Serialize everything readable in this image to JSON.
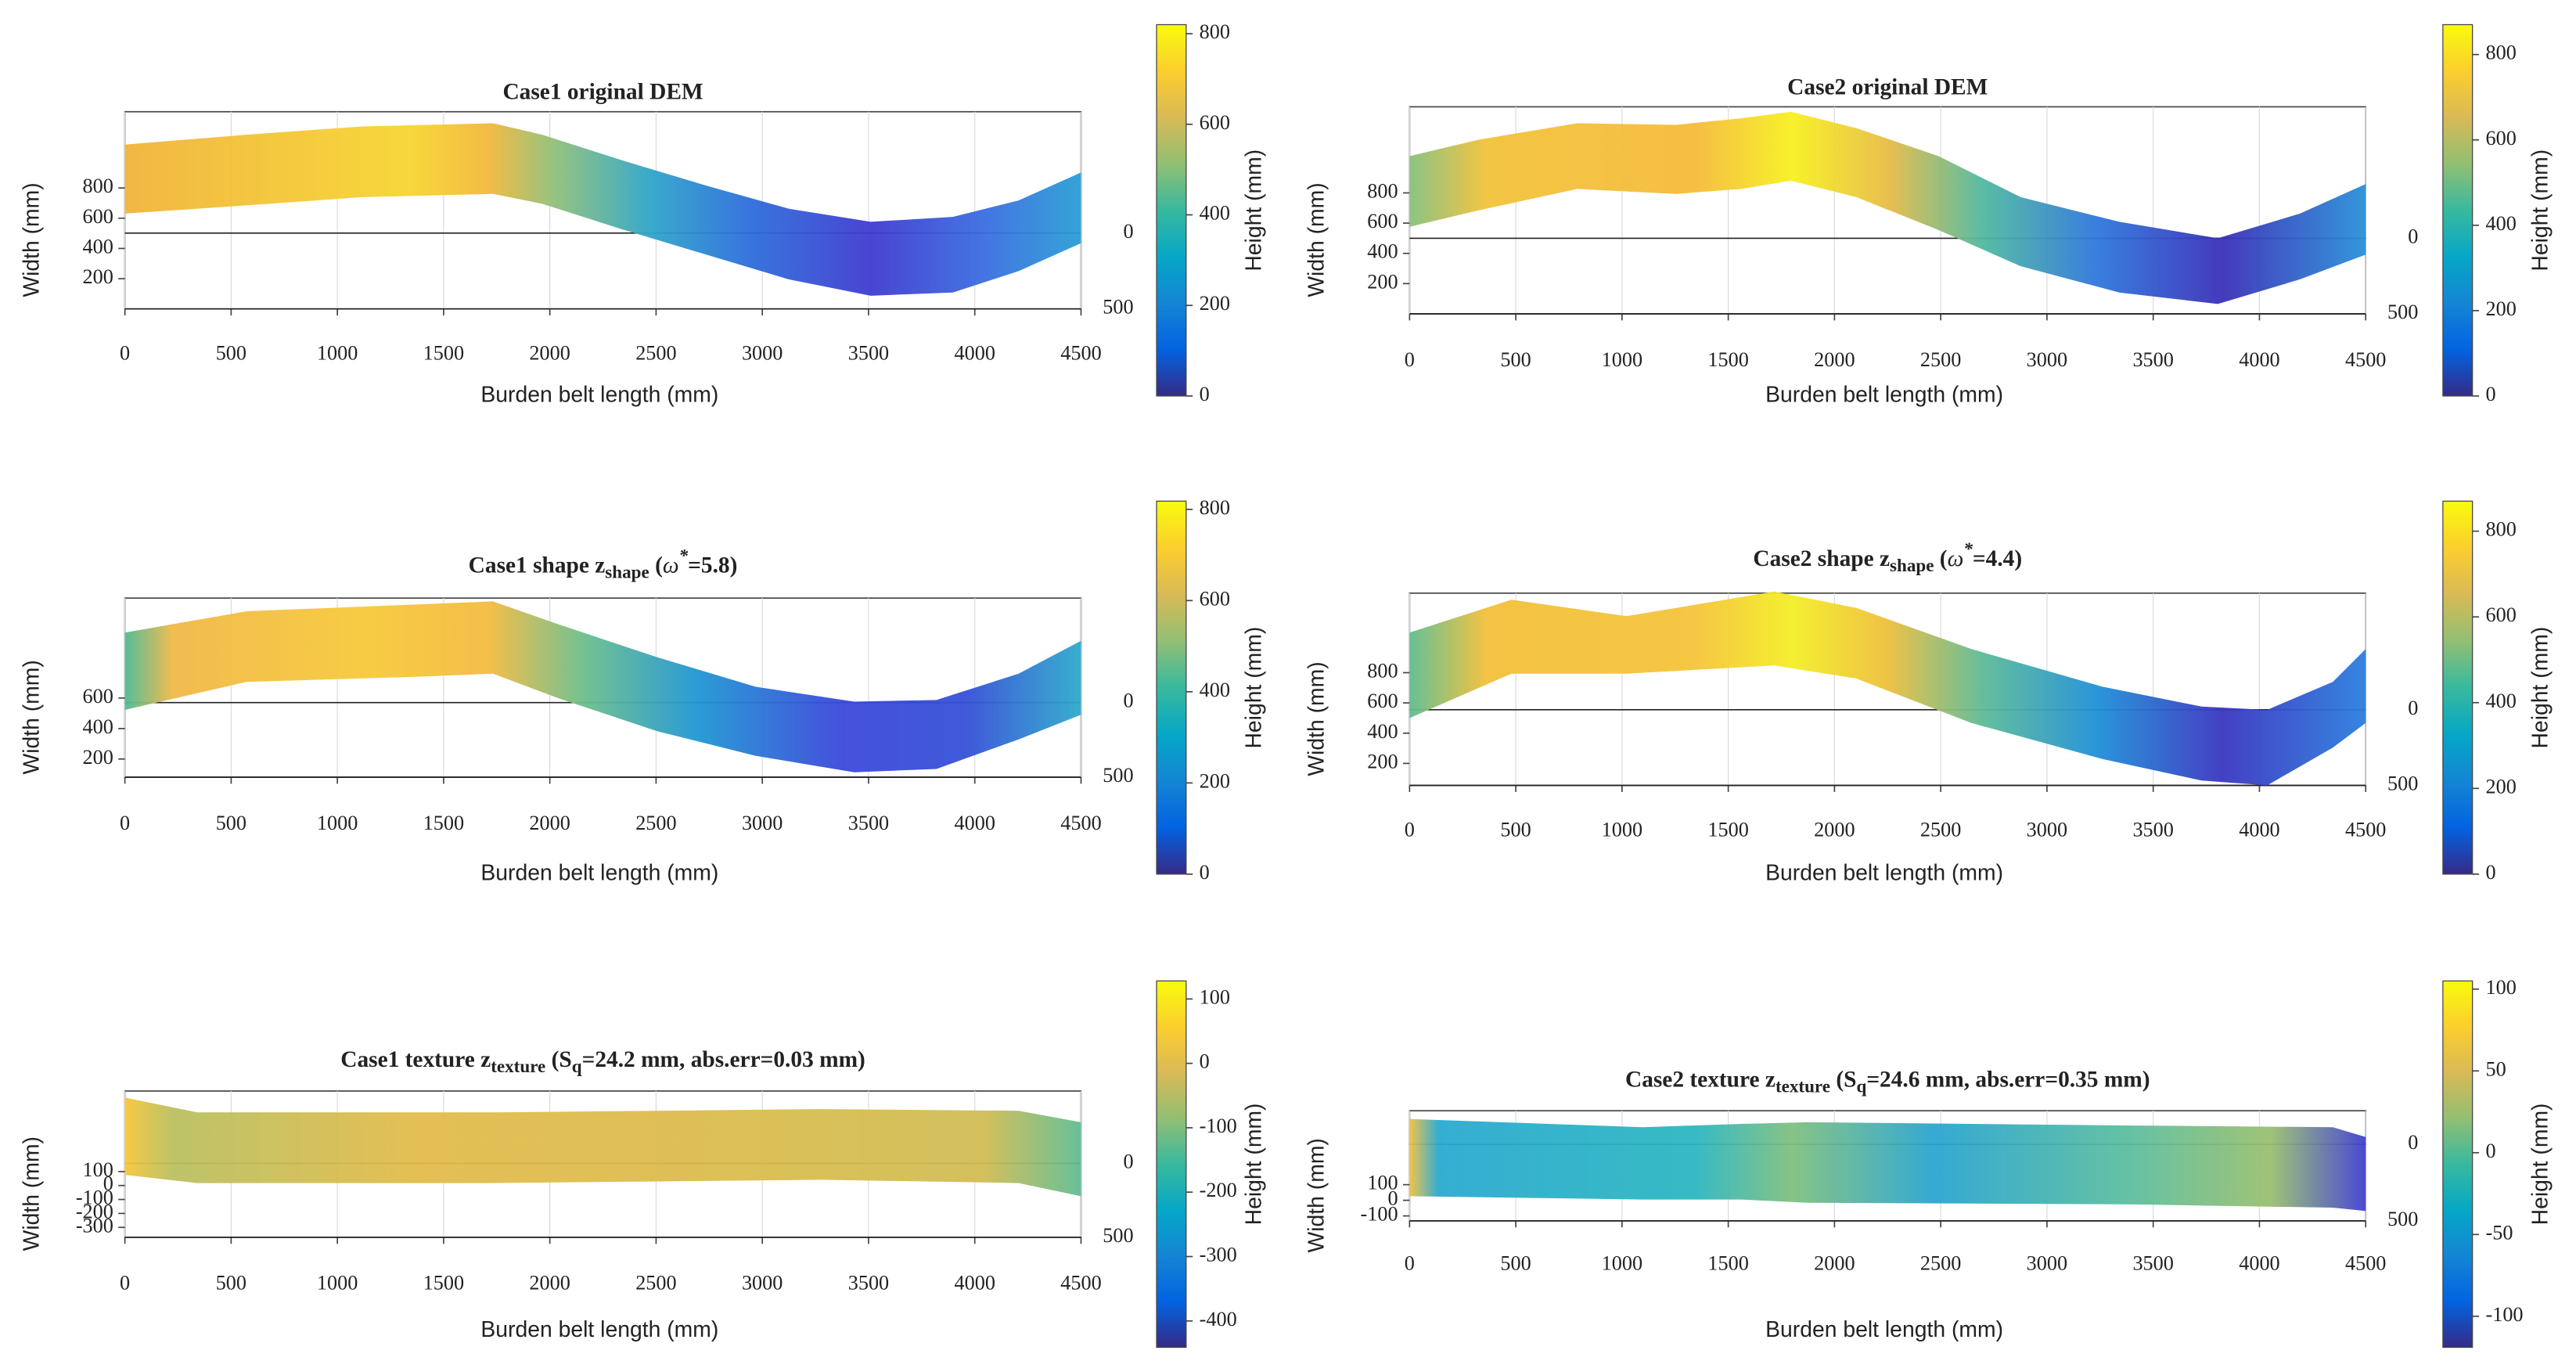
{
  "chart_data": [
    {
      "type": "surface3d",
      "title": [
        {
          "text": "Case1 original DEM"
        }
      ],
      "xlabel": "Burden belt length (mm)",
      "ylabel": "Width (mm)",
      "colorbar_label": "Height (mm)",
      "xlim": [
        0,
        4500
      ],
      "xticks": [
        0,
        500,
        1000,
        1500,
        2000,
        2500,
        3000,
        3500,
        4000,
        4500
      ],
      "ylim": [
        0,
        1000
      ],
      "yticks": [
        200,
        400,
        600,
        800
      ],
      "zlim": [
        -500,
        800
      ],
      "zticks": [
        {
          "value": -500,
          "label": "500"
        },
        0
      ],
      "clim": [
        0,
        820
      ],
      "cticks": [
        0,
        200,
        400,
        600,
        800
      ],
      "colormap": "parula"
    },
    {
      "type": "surface3d",
      "title": [
        {
          "text": "Case2 original DEM"
        }
      ],
      "xlabel": "Burden belt length (mm)",
      "ylabel": "Width (mm)",
      "colorbar_label": "Height (mm)",
      "xlim": [
        0,
        4500
      ],
      "xticks": [
        0,
        500,
        1000,
        1500,
        2000,
        2500,
        3000,
        3500,
        4000,
        4500
      ],
      "ylim": [
        0,
        1000
      ],
      "yticks": [
        200,
        400,
        600,
        800
      ],
      "zlim": [
        -500,
        870
      ],
      "zticks": [
        {
          "value": -500,
          "label": "500"
        },
        0
      ],
      "clim": [
        0,
        870
      ],
      "cticks": [
        0,
        200,
        400,
        600,
        800
      ],
      "colormap": "parula"
    },
    {
      "type": "surface3d",
      "title": [
        {
          "text": "Case1 shape z"
        },
        {
          "text": "shape",
          "style": "sub"
        },
        {
          "text": " ("
        },
        {
          "text": "ω",
          "style": "italic"
        },
        {
          "text": "*",
          "style": "sup"
        },
        {
          "text": "=5.8)"
        }
      ],
      "xlabel": "Burden belt length (mm)",
      "ylabel": "Width (mm)",
      "colorbar_label": "Height (mm)",
      "xlim": [
        0,
        4500
      ],
      "xticks": [
        0,
        500,
        1000,
        1500,
        2000,
        2500,
        3000,
        3500,
        4000,
        4500
      ],
      "ylim": [
        0,
        900
      ],
      "yticks": [
        200,
        400,
        600
      ],
      "zlim": [
        -500,
        700
      ],
      "zticks": [
        {
          "value": -500,
          "label": "500"
        },
        0
      ],
      "clim": [
        0,
        818
      ],
      "cticks": [
        0,
        200,
        400,
        600,
        800
      ],
      "colormap": "parula"
    },
    {
      "type": "surface3d",
      "title": [
        {
          "text": "Case2 shape z"
        },
        {
          "text": "shape",
          "style": "sub"
        },
        {
          "text": " ("
        },
        {
          "text": "ω",
          "style": "italic"
        },
        {
          "text": "*",
          "style": "sup"
        },
        {
          "text": "=4.4)"
        }
      ],
      "xlabel": "Burden belt length (mm)",
      "ylabel": "Width (mm)",
      "colorbar_label": "Height (mm)",
      "xlim": [
        0,
        4500
      ],
      "xticks": [
        0,
        500,
        1000,
        1500,
        2000,
        2500,
        3000,
        3500,
        4000,
        4500
      ],
      "ylim": [
        0,
        1000
      ],
      "yticks": [
        200,
        400,
        600,
        800
      ],
      "zlim": [
        -500,
        770
      ],
      "zticks": [
        {
          "value": -500,
          "label": "500"
        },
        0
      ],
      "clim": [
        0,
        870
      ],
      "cticks": [
        0,
        200,
        400,
        600,
        800
      ],
      "colormap": "parula"
    },
    {
      "type": "surface3d",
      "title": [
        {
          "text": "Case1 texture z"
        },
        {
          "text": "texture",
          "style": "sub"
        },
        {
          "text": " (S"
        },
        {
          "text": "q",
          "style": "sub"
        },
        {
          "text": "=24.2 mm, abs.err=0.03 mm)"
        }
      ],
      "xlabel": "Burden belt length (mm)",
      "ylabel": "Width (mm)",
      "colorbar_label": "Height (mm)",
      "xlim": [
        0,
        4500
      ],
      "xticks": [
        0,
        500,
        1000,
        1500,
        2000,
        2500,
        3000,
        3500,
        4000,
        4500
      ],
      "ylim": [
        -300,
        200
      ],
      "yticks": [
        -300,
        -200,
        -100,
        0,
        100
      ],
      "zlim": [
        -500,
        490
      ],
      "zticks": [
        {
          "value": -500,
          "label": "500"
        },
        0
      ],
      "clim": [
        -441,
        128
      ],
      "cticks": [
        -400,
        -300,
        -200,
        -100,
        0,
        100
      ],
      "colormap": "parula"
    },
    {
      "type": "surface3d",
      "title": [
        {
          "text": "Case2 texture z"
        },
        {
          "text": "texture",
          "style": "sub"
        },
        {
          "text": " (S"
        },
        {
          "text": "q",
          "style": "sub"
        },
        {
          "text": "=24.6 mm, abs.err=0.35 mm)"
        }
      ],
      "xlabel": "Burden belt length (mm)",
      "ylabel": "Width (mm)",
      "colorbar_label": "Height (mm)",
      "xlim": [
        0,
        4500
      ],
      "xticks": [
        0,
        500,
        1000,
        1500,
        2000,
        2500,
        3000,
        3500,
        4000,
        4500
      ],
      "ylim": [
        -100,
        200
      ],
      "yticks": [
        -100,
        0,
        100
      ],
      "zlim": [
        -500,
        220
      ],
      "zticks": [
        {
          "value": -500,
          "label": "500"
        },
        0
      ],
      "clim": [
        -119,
        105
      ],
      "cticks": [
        -100,
        -50,
        0,
        50,
        100
      ],
      "colormap": "parula"
    }
  ]
}
